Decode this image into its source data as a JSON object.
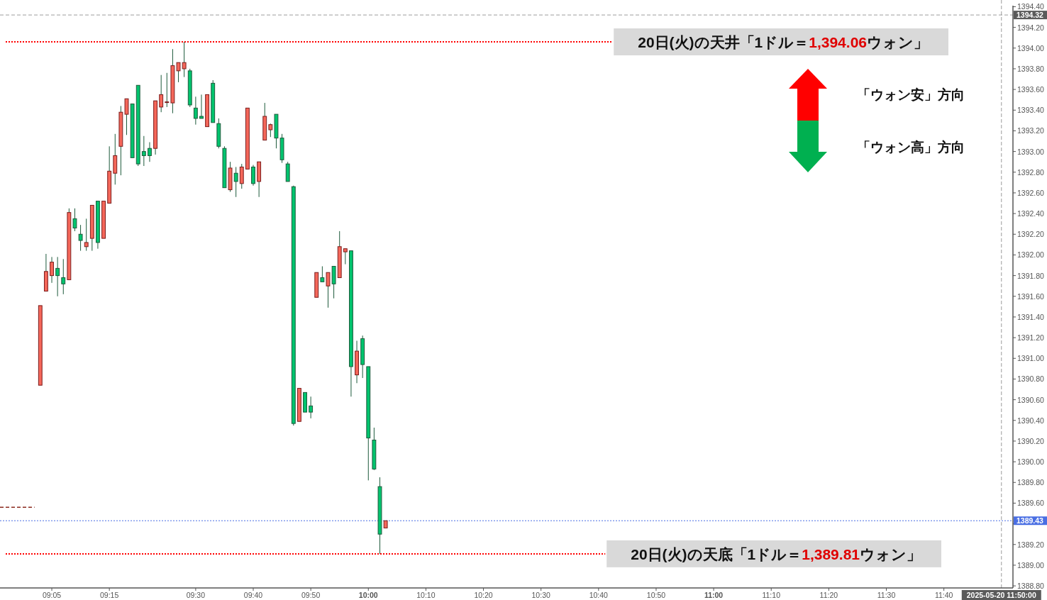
{
  "chart_data": {
    "type": "candlestick",
    "x": [
      "2025-05-20T09:03",
      "2025-05-20T09:04",
      "2025-05-20T09:05",
      "2025-05-20T09:06",
      "2025-05-20T09:07",
      "2025-05-20T09:08",
      "2025-05-20T09:09",
      "2025-05-20T09:10",
      "2025-05-20T09:11",
      "2025-05-20T09:12",
      "2025-05-20T09:13",
      "2025-05-20T09:14",
      "2025-05-20T09:15",
      "2025-05-20T09:16",
      "2025-05-20T09:17",
      "2025-05-20T09:18",
      "2025-05-20T09:19",
      "2025-05-20T09:20",
      "2025-05-20T09:21",
      "2025-05-20T09:22",
      "2025-05-20T09:23",
      "2025-05-20T09:24",
      "2025-05-20T09:25",
      "2025-05-20T09:26",
      "2025-05-20T09:27",
      "2025-05-20T09:28",
      "2025-05-20T09:29",
      "2025-05-20T09:30",
      "2025-05-20T09:31",
      "2025-05-20T09:32",
      "2025-05-20T09:33",
      "2025-05-20T09:34",
      "2025-05-20T09:35",
      "2025-05-20T09:36",
      "2025-05-20T09:37",
      "2025-05-20T09:38",
      "2025-05-20T09:39",
      "2025-05-20T09:40",
      "2025-05-20T09:41",
      "2025-05-20T09:42",
      "2025-05-20T09:43",
      "2025-05-20T09:44",
      "2025-05-20T09:45",
      "2025-05-20T09:46",
      "2025-05-20T09:47",
      "2025-05-20T09:48",
      "2025-05-20T09:49",
      "2025-05-20T09:50",
      "2025-05-20T09:51",
      "2025-05-20T09:52",
      "2025-05-20T09:53",
      "2025-05-20T09:54",
      "2025-05-20T09:55",
      "2025-05-20T09:56",
      "2025-05-20T09:57",
      "2025-05-20T09:58",
      "2025-05-20T09:59",
      "2025-05-20T10:00",
      "2025-05-20T10:01",
      "2025-05-20T10:02",
      "2025-05-20T10:03"
    ],
    "ohlc": [
      [
        1390.74,
        1391.51,
        1390.74,
        1391.51
      ],
      [
        1391.65,
        1392.01,
        1391.65,
        1391.84
      ],
      [
        1391.8,
        1391.98,
        1391.73,
        1391.93
      ],
      [
        1391.87,
        1391.98,
        1391.6,
        1391.8
      ],
      [
        1391.78,
        1391.96,
        1391.62,
        1391.72
      ],
      [
        1391.76,
        1392.45,
        1391.76,
        1392.41
      ],
      [
        1392.35,
        1392.45,
        1392.23,
        1392.26
      ],
      [
        1392.2,
        1392.29,
        1392.04,
        1392.14
      ],
      [
        1392.08,
        1392.35,
        1392.04,
        1392.12
      ],
      [
        1392.16,
        1392.48,
        1392.04,
        1392.48
      ],
      [
        1392.52,
        1392.52,
        1392.06,
        1392.12
      ],
      [
        1392.16,
        1392.52,
        1392.16,
        1392.52
      ],
      [
        1392.5,
        1393.05,
        1392.5,
        1392.81
      ],
      [
        1392.79,
        1393.17,
        1392.68,
        1392.96
      ],
      [
        1393.05,
        1393.44,
        1392.77,
        1393.38
      ],
      [
        1393.36,
        1393.51,
        1393.16,
        1393.51
      ],
      [
        1393.46,
        1393.46,
        1392.94,
        1392.94
      ],
      [
        1393.64,
        1393.64,
        1392.86,
        1392.88
      ],
      [
        1393.0,
        1393.15,
        1392.86,
        1392.96
      ],
      [
        1393.03,
        1393.09,
        1392.9,
        1392.96
      ],
      [
        1393.03,
        1393.49,
        1392.97,
        1393.49
      ],
      [
        1393.43,
        1393.74,
        1393.38,
        1393.55
      ],
      [
        1393.48,
        1393.76,
        1393.43,
        1393.48
      ],
      [
        1393.47,
        1393.99,
        1393.37,
        1393.83
      ],
      [
        1393.78,
        1393.86,
        1393.67,
        1393.86
      ],
      [
        1393.8,
        1394.06,
        1393.72,
        1393.86
      ],
      [
        1393.78,
        1393.8,
        1393.43,
        1393.45
      ],
      [
        1393.42,
        1393.53,
        1393.26,
        1393.32
      ],
      [
        1393.34,
        1393.55,
        1393.32,
        1393.32
      ],
      [
        1393.24,
        1393.55,
        1393.24,
        1393.55
      ],
      [
        1393.66,
        1393.69,
        1393.28,
        1393.28
      ],
      [
        1393.27,
        1393.32,
        1393.03,
        1393.05
      ],
      [
        1393.03,
        1393.05,
        1392.65,
        1392.65
      ],
      [
        1392.63,
        1392.9,
        1392.61,
        1392.84
      ],
      [
        1392.79,
        1392.85,
        1392.56,
        1392.71
      ],
      [
        1392.69,
        1392.88,
        1392.64,
        1392.85
      ],
      [
        1392.83,
        1393.42,
        1392.83,
        1393.42
      ],
      [
        1392.85,
        1392.87,
        1392.67,
        1392.69
      ],
      [
        1392.71,
        1392.9,
        1392.56,
        1392.9
      ],
      [
        1393.11,
        1393.47,
        1393.11,
        1393.34
      ],
      [
        1393.21,
        1393.27,
        1393.14,
        1393.26
      ],
      [
        1393.36,
        1393.36,
        1393.03,
        1393.13
      ],
      [
        1393.13,
        1393.17,
        1392.89,
        1392.92
      ],
      [
        1392.88,
        1392.9,
        1392.71,
        1392.71
      ],
      [
        1392.66,
        1392.67,
        1390.35,
        1390.37
      ],
      [
        1390.39,
        1390.71,
        1390.39,
        1390.71
      ],
      [
        1390.67,
        1390.67,
        1390.48,
        1390.48
      ],
      [
        1390.54,
        1390.63,
        1390.42,
        1390.48
      ],
      [
        1391.59,
        1391.83,
        1391.59,
        1391.83
      ],
      [
        1391.78,
        1391.89,
        1391.74,
        1391.74
      ],
      [
        1391.7,
        1391.83,
        1391.49,
        1391.83
      ],
      [
        1391.89,
        1391.89,
        1391.58,
        1391.72
      ],
      [
        1391.78,
        1392.23,
        1391.78,
        1392.08
      ],
      [
        1392.03,
        1392.06,
        1391.91,
        1392.06
      ],
      [
        1392.04,
        1392.04,
        1390.63,
        1390.92
      ],
      [
        1390.84,
        1391.17,
        1390.76,
        1391.07
      ],
      [
        1391.19,
        1391.22,
        1390.81,
        1390.94
      ],
      [
        1390.92,
        1390.92,
        1389.82,
        1390.23
      ],
      [
        1390.21,
        1390.33,
        1389.92,
        1389.93
      ],
      [
        1389.76,
        1389.85,
        1389.11,
        1389.3
      ],
      [
        1389.36,
        1389.43,
        1389.36,
        1389.43
      ]
    ],
    "series": [
      {
        "type": "line",
        "x": [
          "2025-05-20T08:56",
          "2025-05-20T09:02"
        ],
        "values": [
          1389.56,
          1389.56
        ],
        "color": "#8b2b1f",
        "line_style": "dashed"
      }
    ],
    "xlim": [
      "2025-05-20T08:56",
      "2025-05-20T11:52"
    ],
    "xticks": [
      {
        "value": "2025-05-20T09:05",
        "label": "09:05"
      },
      {
        "value": "2025-05-20T09:15",
        "label": "09:15"
      },
      {
        "value": "2025-05-20T09:30",
        "label": "09:30"
      },
      {
        "value": "2025-05-20T09:40",
        "label": "09:40"
      },
      {
        "value": "2025-05-20T09:50",
        "label": "09:50"
      },
      {
        "value": "2025-05-20T10:00",
        "label": "10:00"
      },
      {
        "value": "2025-05-20T10:10",
        "label": "10:10"
      },
      {
        "value": "2025-05-20T10:20",
        "label": "10:20"
      },
      {
        "value": "2025-05-20T10:30",
        "label": "10:30"
      },
      {
        "value": "2025-05-20T10:40",
        "label": "10:40"
      },
      {
        "value": "2025-05-20T10:50",
        "label": "10:50"
      },
      {
        "value": "2025-05-20T11:00",
        "label": "11:00"
      },
      {
        "value": "2025-05-20T11:10",
        "label": "11:10"
      },
      {
        "value": "2025-05-20T11:20",
        "label": "11:20"
      },
      {
        "value": "2025-05-20T11:30",
        "label": "11:30"
      },
      {
        "value": "2025-05-20T11:40",
        "label": "11:40"
      }
    ],
    "ylim": [
      1388.78,
      1394.41
    ],
    "yticks": [
      {
        "value": 1388.8,
        "label": "1388.80"
      },
      {
        "value": 1389.0,
        "label": "1389.00"
      },
      {
        "value": 1389.2,
        "label": "1389.20"
      },
      {
        "value": 1389.4,
        "label": null
      },
      {
        "value": 1389.6,
        "label": "1389.60"
      },
      {
        "value": 1389.8,
        "label": "1389.80"
      },
      {
        "value": 1390.0,
        "label": "1390.00"
      },
      {
        "value": 1390.2,
        "label": "1390.20"
      },
      {
        "value": 1390.4,
        "label": "1390.40"
      },
      {
        "value": 1390.6,
        "label": "1390.60"
      },
      {
        "value": 1390.8,
        "label": "1390.80"
      },
      {
        "value": 1391.0,
        "label": "1391.00"
      },
      {
        "value": 1391.2,
        "label": "1391.20"
      },
      {
        "value": 1391.4,
        "label": "1391.40"
      },
      {
        "value": 1391.6,
        "label": "1391.60"
      },
      {
        "value": 1391.8,
        "label": "1391.80"
      },
      {
        "value": 1392.0,
        "label": "1392.00"
      },
      {
        "value": 1392.2,
        "label": "1392.20"
      },
      {
        "value": 1392.4,
        "label": "1392.40"
      },
      {
        "value": 1392.6,
        "label": "1392.60"
      },
      {
        "value": 1392.8,
        "label": "1392.80"
      },
      {
        "value": 1393.0,
        "label": "1393.00"
      },
      {
        "value": 1393.2,
        "label": "1393.20"
      },
      {
        "value": 1393.4,
        "label": "1393.40"
      },
      {
        "value": 1393.6,
        "label": "1393.60"
      },
      {
        "value": 1393.8,
        "label": "1393.80"
      },
      {
        "value": 1394.0,
        "label": "1394.00"
      },
      {
        "value": 1394.2,
        "label": "1394.20"
      },
      {
        "value": 1394.4,
        "label": "1394.40"
      }
    ],
    "ref_lines": [
      {
        "axis": "y",
        "value": 1394.06,
        "color": "#ff0000",
        "line_style": "dotted"
      },
      {
        "axis": "y",
        "value": 1389.11,
        "color": "#ff0000",
        "line_style": "dotted"
      },
      {
        "axis": "y",
        "value": 1389.43,
        "label": "1389.43",
        "color": "#4a6fe3",
        "line_style": "dotted"
      },
      {
        "axis": "y",
        "value": 1394.32,
        "label": "1394.32",
        "color": "#5a5a5a",
        "line_style": "dashed"
      },
      {
        "axis": "x",
        "value": "2025-05-20T11:50",
        "label": "2025-05-20 11:50:00",
        "color": "#5a5a5a",
        "line_style": "dashed"
      }
    ],
    "annotations": [
      "20日(火)の天井「1ドル＝1,394.06ウォン」",
      "20日(火)の天底「1ドル＝1,389.81ウォン」",
      "「ウォン安」方向",
      "「ウォン高」方向"
    ]
  }
}
